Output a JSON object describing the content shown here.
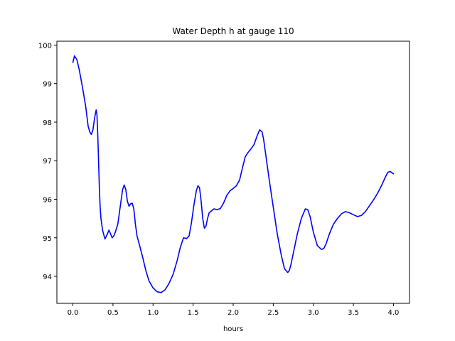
{
  "chart_data": {
    "type": "line",
    "title": "Water Depth h at gauge 110",
    "xlabel": "hours",
    "ylabel": "",
    "xlim": [
      -0.2,
      4.2
    ],
    "ylim": [
      93.3,
      100.1
    ],
    "grid": false,
    "xticks": [
      0.0,
      0.5,
      1.0,
      1.5,
      2.0,
      2.5,
      3.0,
      3.5,
      4.0
    ],
    "xtick_labels": [
      "0.0",
      "0.5",
      "1.0",
      "1.5",
      "2.0",
      "2.5",
      "3.0",
      "3.5",
      "4.0"
    ],
    "yticks": [
      94,
      95,
      96,
      97,
      98,
      99,
      100
    ],
    "ytick_labels": [
      "94",
      "95",
      "96",
      "97",
      "98",
      "99",
      "100"
    ],
    "series": [
      {
        "color": "#0000ff",
        "x": [
          0.0,
          0.02,
          0.05,
          0.08,
          0.12,
          0.16,
          0.19,
          0.21,
          0.23,
          0.25,
          0.27,
          0.29,
          0.3,
          0.31,
          0.32,
          0.33,
          0.34,
          0.35,
          0.37,
          0.4,
          0.43,
          0.45,
          0.47,
          0.49,
          0.51,
          0.53,
          0.56,
          0.59,
          0.62,
          0.64,
          0.66,
          0.68,
          0.7,
          0.72,
          0.74,
          0.76,
          0.78,
          0.8,
          0.83,
          0.87,
          0.91,
          0.95,
          1.0,
          1.05,
          1.1,
          1.15,
          1.2,
          1.25,
          1.3,
          1.34,
          1.38,
          1.42,
          1.45,
          1.48,
          1.51,
          1.54,
          1.56,
          1.58,
          1.6,
          1.62,
          1.64,
          1.66,
          1.68,
          1.7,
          1.73,
          1.76,
          1.8,
          1.84,
          1.88,
          1.92,
          1.96,
          2.0,
          2.04,
          2.08,
          2.12,
          2.15,
          2.18,
          2.22,
          2.26,
          2.3,
          2.33,
          2.36,
          2.38,
          2.4,
          2.42,
          2.45,
          2.5,
          2.55,
          2.6,
          2.64,
          2.68,
          2.7,
          2.72,
          2.76,
          2.8,
          2.85,
          2.9,
          2.93,
          2.96,
          3.0,
          3.05,
          3.1,
          3.13,
          3.16,
          3.2,
          3.25,
          3.3,
          3.35,
          3.4,
          3.45,
          3.5,
          3.55,
          3.6,
          3.65,
          3.7,
          3.75,
          3.8,
          3.85,
          3.9,
          3.93,
          3.96,
          4.0
        ],
        "y": [
          99.55,
          99.72,
          99.62,
          99.35,
          98.9,
          98.4,
          97.9,
          97.75,
          97.68,
          97.8,
          98.1,
          98.32,
          98.2,
          97.7,
          97.0,
          96.3,
          95.8,
          95.5,
          95.2,
          94.97,
          95.1,
          95.2,
          95.1,
          95.0,
          95.05,
          95.15,
          95.35,
          95.8,
          96.25,
          96.37,
          96.25,
          95.95,
          95.82,
          95.88,
          95.9,
          95.75,
          95.35,
          95.05,
          94.82,
          94.5,
          94.15,
          93.88,
          93.7,
          93.6,
          93.58,
          93.65,
          93.82,
          94.05,
          94.4,
          94.75,
          95.0,
          94.98,
          95.05,
          95.4,
          95.85,
          96.22,
          96.35,
          96.3,
          95.95,
          95.5,
          95.25,
          95.3,
          95.5,
          95.65,
          95.7,
          95.75,
          95.73,
          95.76,
          95.9,
          96.1,
          96.22,
          96.28,
          96.35,
          96.5,
          96.85,
          97.1,
          97.2,
          97.3,
          97.42,
          97.65,
          97.8,
          97.75,
          97.55,
          97.25,
          96.95,
          96.5,
          95.8,
          95.1,
          94.55,
          94.2,
          94.1,
          94.15,
          94.3,
          94.7,
          95.1,
          95.5,
          95.75,
          95.73,
          95.55,
          95.15,
          94.8,
          94.7,
          94.72,
          94.85,
          95.1,
          95.35,
          95.5,
          95.62,
          95.68,
          95.65,
          95.6,
          95.55,
          95.58,
          95.68,
          95.83,
          95.98,
          96.15,
          96.35,
          96.58,
          96.7,
          96.72,
          96.66
        ]
      }
    ]
  }
}
